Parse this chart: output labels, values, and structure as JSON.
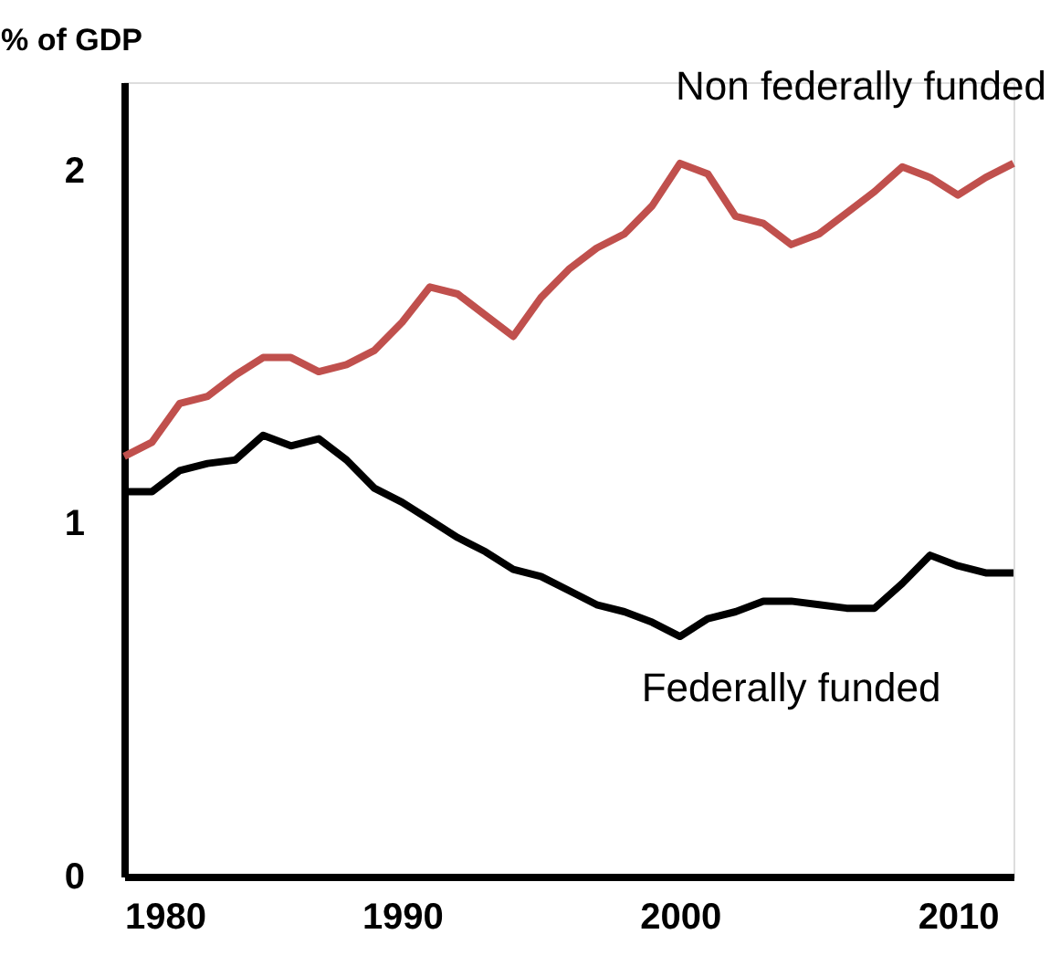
{
  "chart_data": {
    "type": "line",
    "ylabel": "% of GDP",
    "x": [
      1980,
      1981,
      1982,
      1983,
      1984,
      1985,
      1986,
      1987,
      1988,
      1989,
      1990,
      1991,
      1992,
      1993,
      1994,
      1995,
      1996,
      1997,
      1998,
      1999,
      2000,
      2001,
      2002,
      2003,
      2004,
      2005,
      2006,
      2007,
      2008,
      2009,
      2010,
      2011,
      2012
    ],
    "series": [
      {
        "name": "Non federally funded",
        "color": "#c0504d",
        "values": [
          1.19,
          1.23,
          1.34,
          1.36,
          1.42,
          1.47,
          1.47,
          1.43,
          1.45,
          1.49,
          1.57,
          1.67,
          1.65,
          1.59,
          1.53,
          1.64,
          1.72,
          1.78,
          1.82,
          1.9,
          2.02,
          1.99,
          1.87,
          1.85,
          1.79,
          1.82,
          1.88,
          1.94,
          2.01,
          1.98,
          1.93,
          1.98,
          2.02
        ]
      },
      {
        "name": "Federally funded",
        "color": "#000000",
        "values": [
          1.09,
          1.09,
          1.15,
          1.17,
          1.18,
          1.25,
          1.22,
          1.24,
          1.18,
          1.1,
          1.06,
          1.01,
          0.96,
          0.92,
          0.87,
          0.85,
          0.81,
          0.77,
          0.75,
          0.72,
          0.68,
          0.73,
          0.75,
          0.78,
          0.78,
          0.77,
          0.76,
          0.76,
          0.83,
          0.91,
          0.88,
          0.86,
          0.86
        ]
      }
    ],
    "xlim": [
      1980,
      2012
    ],
    "xticks": [
      1980,
      1990,
      2000,
      2010
    ],
    "ylim": [
      0,
      2.25
    ],
    "yticks": [
      0,
      1,
      2
    ],
    "grid": false,
    "legend": false,
    "marker": "none",
    "line_style": "solid"
  }
}
